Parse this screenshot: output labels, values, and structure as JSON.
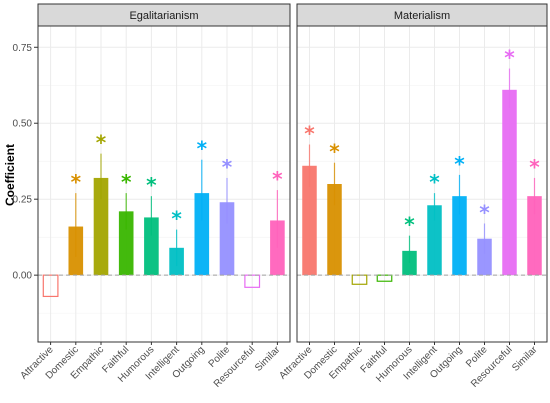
{
  "chart_data": {
    "type": "bar",
    "ylabel": "Coefficient",
    "ylim": [
      -0.22,
      0.82
    ],
    "yticks": [
      0.0,
      0.25,
      0.5,
      0.75
    ],
    "ytick_labels": [
      "0.00",
      "0.25",
      "0.50",
      "0.75"
    ],
    "grid": true,
    "categories": [
      "Attractive",
      "Domestic",
      "Empathic",
      "Faithful",
      "Humorous",
      "Intelligent",
      "Outgoing",
      "Polite",
      "Resourceful",
      "Similar"
    ],
    "colors": [
      "#f8766d",
      "#d89000",
      "#a3a500",
      "#39b600",
      "#00bf7d",
      "#00bfc4",
      "#00b0f6",
      "#9590ff",
      "#e76bf3",
      "#ff62bc"
    ],
    "star_symbol": "*",
    "panels": [
      {
        "title": "Egalitarianism",
        "values": [
          -0.07,
          0.16,
          0.32,
          0.21,
          0.19,
          0.09,
          0.27,
          0.24,
          -0.04,
          0.18
        ],
        "ci_low": [
          null,
          0.06,
          0.25,
          0.15,
          0.13,
          0.03,
          0.18,
          0.17,
          null,
          0.09
        ],
        "ci_high": [
          null,
          0.27,
          0.4,
          0.27,
          0.26,
          0.15,
          0.38,
          0.32,
          null,
          0.28
        ],
        "significant": [
          false,
          true,
          true,
          true,
          true,
          true,
          true,
          true,
          false,
          true
        ]
      },
      {
        "title": "Materialism",
        "values": [
          0.36,
          0.3,
          -0.03,
          -0.02,
          0.08,
          0.23,
          0.26,
          0.12,
          0.61,
          0.26
        ],
        "ci_low": [
          0.29,
          0.23,
          null,
          null,
          0.04,
          0.18,
          0.2,
          0.07,
          0.55,
          0.2
        ],
        "ci_high": [
          0.43,
          0.37,
          null,
          null,
          0.13,
          0.27,
          0.33,
          0.17,
          0.68,
          0.32
        ],
        "significant": [
          true,
          true,
          false,
          false,
          true,
          true,
          true,
          true,
          true,
          true
        ]
      }
    ]
  }
}
